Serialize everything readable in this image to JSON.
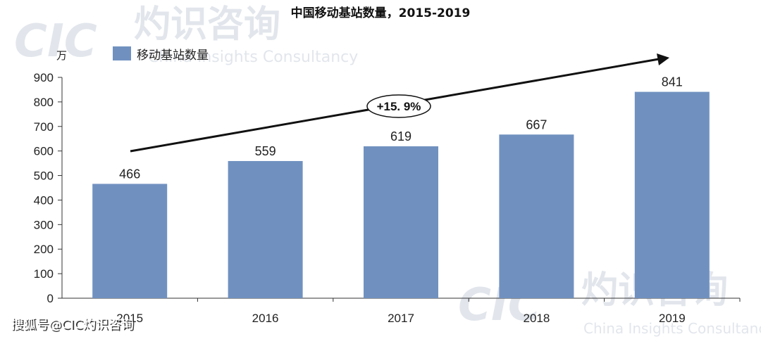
{
  "chart_data": {
    "type": "bar",
    "title": "中国移动基站数量，2015-2019",
    "unit": "万",
    "categories": [
      "2015",
      "2016",
      "2017",
      "2018",
      "2019"
    ],
    "series": [
      {
        "name": "移动基站数量",
        "values": [
          466,
          559,
          619,
          667,
          841
        ]
      }
    ],
    "value_labels": [
      "466",
      "559",
      "619",
      "667",
      "841"
    ],
    "yticks": [
      "0",
      "100",
      "200",
      "300",
      "400",
      "500",
      "600",
      "700",
      "800",
      "900"
    ],
    "ylim": [
      0,
      900
    ],
    "grid": false,
    "legend": "top-left",
    "annotation": "+15. 9%",
    "bar_color": "#7091c0"
  },
  "watermark": {
    "logo": "CIC",
    "brand_cn": "灼识咨询",
    "brand_en": "China Insights Consultancy"
  },
  "footer": {
    "source_tag": "搜狐号@CIC灼识咨询"
  }
}
